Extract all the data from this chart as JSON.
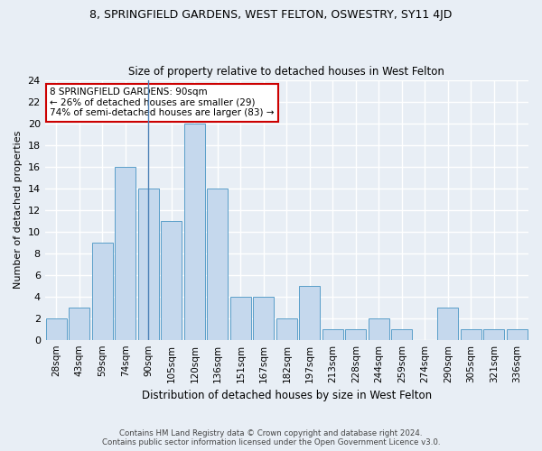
{
  "title": "8, SPRINGFIELD GARDENS, WEST FELTON, OSWESTRY, SY11 4JD",
  "subtitle": "Size of property relative to detached houses in West Felton",
  "xlabel": "Distribution of detached houses by size in West Felton",
  "ylabel": "Number of detached properties",
  "categories": [
    "28sqm",
    "43sqm",
    "59sqm",
    "74sqm",
    "90sqm",
    "105sqm",
    "120sqm",
    "136sqm",
    "151sqm",
    "167sqm",
    "182sqm",
    "197sqm",
    "213sqm",
    "228sqm",
    "244sqm",
    "259sqm",
    "274sqm",
    "290sqm",
    "305sqm",
    "321sqm",
    "336sqm"
  ],
  "values": [
    2,
    3,
    9,
    16,
    14,
    11,
    20,
    14,
    4,
    4,
    2,
    5,
    1,
    1,
    2,
    1,
    0,
    3,
    1,
    1,
    1
  ],
  "bar_color": "#c5d8ed",
  "bar_edge_color": "#5a9ec9",
  "highlight_index": 4,
  "highlight_line_color": "#4a7fb5",
  "ylim": [
    0,
    24
  ],
  "yticks": [
    0,
    2,
    4,
    6,
    8,
    10,
    12,
    14,
    16,
    18,
    20,
    22,
    24
  ],
  "annotation_box_color": "white",
  "annotation_box_edge": "#cc0000",
  "annotation_lines": [
    "8 SPRINGFIELD GARDENS: 90sqm",
    "← 26% of detached houses are smaller (29)",
    "74% of semi-detached houses are larger (83) →"
  ],
  "footer1": "Contains HM Land Registry data © Crown copyright and database right 2024.",
  "footer2": "Contains public sector information licensed under the Open Government Licence v3.0.",
  "bg_color": "#e8eef5",
  "grid_color": "white"
}
